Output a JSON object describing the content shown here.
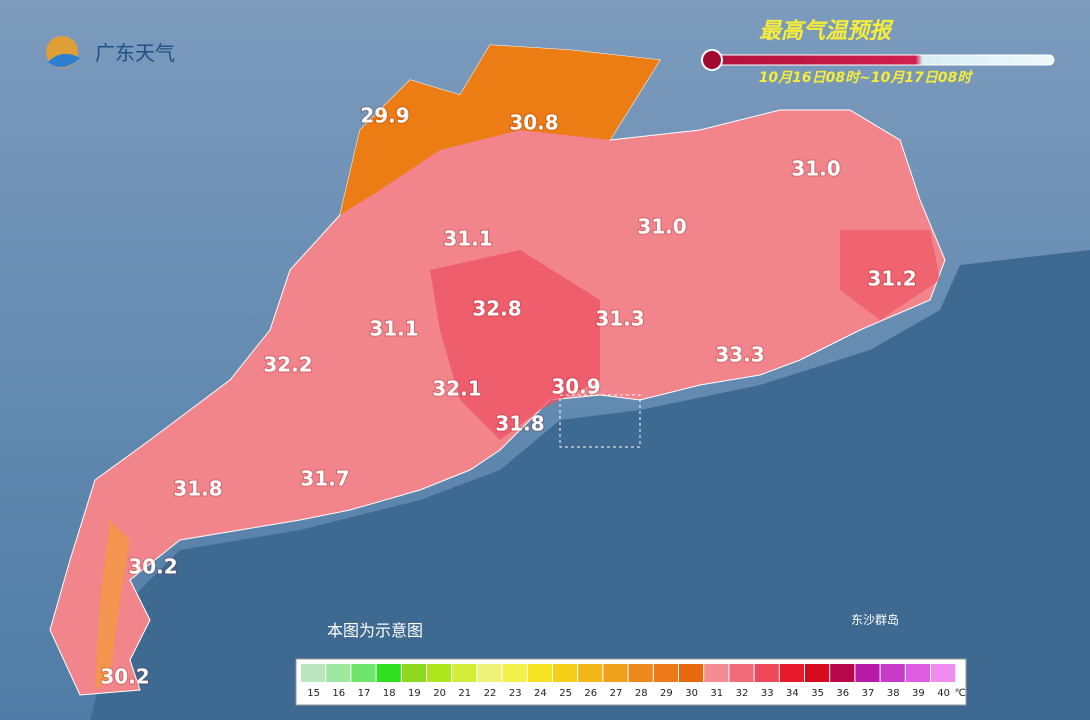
{
  "header": {
    "logo": "广东天气",
    "title": "最高气温预报",
    "period": "10月16日08时~10月17日08时"
  },
  "labels": [
    "29.9",
    "30.8",
    "31.0",
    "31.0",
    "31.1",
    "31.2",
    "32.8",
    "31.1",
    "31.3",
    "32.2",
    "33.3",
    "32.1",
    "30.9",
    "31.8",
    "31.8",
    "31.7",
    "30.2",
    "30.2"
  ],
  "note": "本图为示意图",
  "island": "东沙群岛",
  "legend": {
    "ticks": [
      15,
      16,
      17,
      18,
      19,
      20,
      21,
      22,
      23,
      24,
      25,
      26,
      27,
      28,
      29,
      30,
      31,
      32,
      33,
      34,
      35,
      36,
      37,
      38,
      39,
      40
    ],
    "colors": [
      "#b9e6bd",
      "#9fe8a0",
      "#6fe46a",
      "#2ee020",
      "#8ed820",
      "#aee61e",
      "#d2ee3a",
      "#eef27a",
      "#f4f04a",
      "#f6e21e",
      "#f6d018",
      "#f2b81a",
      "#f0a01c",
      "#ee8a1c",
      "#ec7a18",
      "#e8680e",
      "#f48c94",
      "#f06a78",
      "#ee4a5c",
      "#e61a2a",
      "#d60a1c",
      "#b8084a",
      "#b81aa8",
      "#c83ac8",
      "#de5ce0",
      "#f08cf0"
    ],
    "unit": "℃"
  }
}
